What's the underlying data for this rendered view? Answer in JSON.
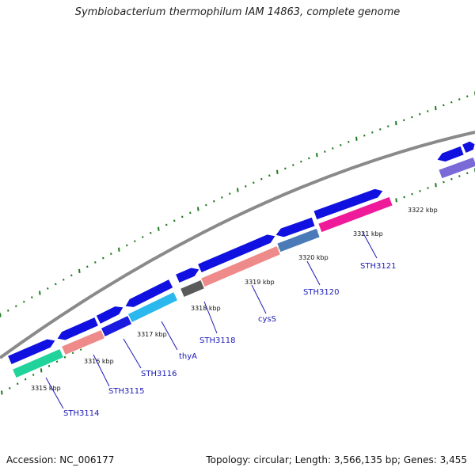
{
  "title": "Symbiobacterium thermophilum IAM 14863, complete genome",
  "footer": {
    "accession": "Accession: NC_006177",
    "summary": "Topology: circular; Length: 3,566,135 bp; Genes: 3,455"
  },
  "colors": {
    "backbone": "#8a8a8a",
    "tick": "#1e7a1e",
    "feature_default": "#1010e0",
    "label": "#1a1ab8"
  },
  "scale_ticks": [
    {
      "label": "3315 kbp"
    },
    {
      "label": "3316 kbp"
    },
    {
      "label": "3317 kbp"
    },
    {
      "label": "3318 kbp"
    },
    {
      "label": "3319 kbp"
    },
    {
      "label": "3320 kbp"
    },
    {
      "label": "3321 kbp"
    },
    {
      "label": "3322 kbp"
    }
  ],
  "gene_labels": [
    {
      "name": "STH3114"
    },
    {
      "name": "STH3115"
    },
    {
      "name": "STH3116"
    },
    {
      "name": "thyA"
    },
    {
      "name": "STH3118"
    },
    {
      "name": "cysS"
    },
    {
      "name": "STH3120"
    },
    {
      "name": "STH3121"
    }
  ],
  "features": [
    {
      "track": "outer",
      "strand": "forward",
      "color": "#1010e0"
    },
    {
      "track": "outer",
      "strand": "reverse",
      "color": "#1010e0"
    },
    {
      "track": "outer",
      "strand": "forward",
      "color": "#1010e0"
    },
    {
      "track": "outer",
      "strand": "reverse",
      "color": "#1010e0"
    },
    {
      "track": "outer",
      "strand": "forward",
      "color": "#1010e0"
    },
    {
      "track": "outer",
      "strand": "forward",
      "color": "#1010e0"
    },
    {
      "track": "outer",
      "strand": "reverse",
      "color": "#1010e0"
    },
    {
      "track": "outer",
      "strand": "forward",
      "color": "#1010e0"
    },
    {
      "track": "outer",
      "strand": "reverse",
      "color": "#1010e0"
    },
    {
      "track": "outer",
      "strand": "forward",
      "color": "#1010e0"
    },
    {
      "track": "inner",
      "strand": "forward",
      "color": "#1fd39a"
    },
    {
      "track": "inner",
      "strand": "forward",
      "color": "#ef8a8a"
    },
    {
      "track": "inner",
      "strand": "forward",
      "color": "#1a1ae0"
    },
    {
      "track": "inner",
      "strand": "forward",
      "color": "#2ab8ef"
    },
    {
      "track": "inner",
      "strand": "forward",
      "color": "#5a5a5a"
    },
    {
      "track": "inner",
      "strand": "forward",
      "color": "#ef8a8a"
    },
    {
      "track": "inner",
      "strand": "forward",
      "color": "#4a7ab8"
    },
    {
      "track": "inner",
      "strand": "forward",
      "color": "#ef1a9a"
    },
    {
      "track": "inner",
      "strand": "forward",
      "color": "#7a6ad8"
    }
  ]
}
